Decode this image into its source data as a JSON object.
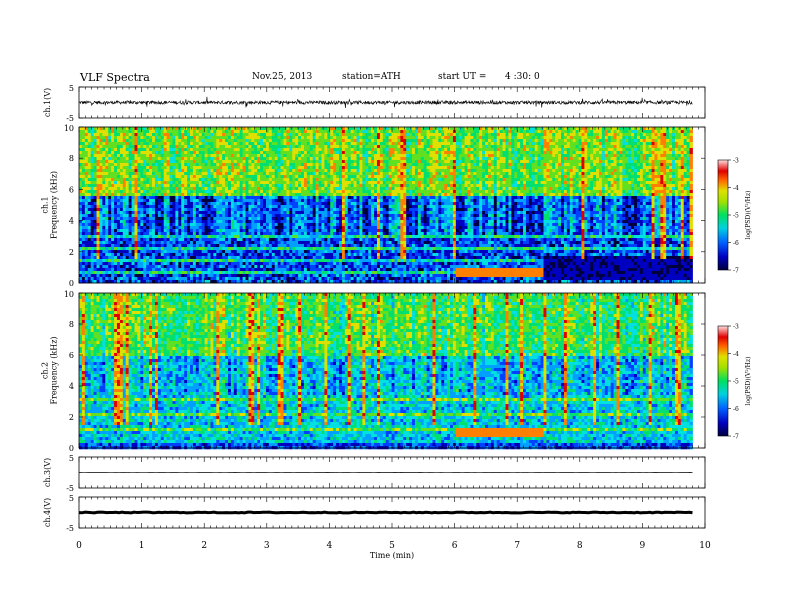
{
  "header": {
    "title": "VLF  Spectra",
    "date": "Nov.25, 2013",
    "station": "station=ATH",
    "start_label": "start  UT  =",
    "start_time": "4 :30: 0"
  },
  "colors": {
    "spectrogram": [
      "#000040",
      "#0000c0",
      "#0040ff",
      "#00a0ff",
      "#00e0e0",
      "#00e070",
      "#60e020",
      "#e0e000",
      "#ff8000",
      "#e00000",
      "#ffffff"
    ],
    "waveform": "#000000"
  },
  "chart_data": [
    {
      "type": "line",
      "panel": "ch1-waveform",
      "ylabel": "ch.1(V)",
      "ylim": [
        -5,
        5
      ],
      "yticks": [
        "5",
        "-5"
      ],
      "description_values": {
        "baseline": 0,
        "typical_amplitude": 1.0
      }
    },
    {
      "type": "heatmap",
      "panel": "ch1-spectrogram",
      "ylabel": [
        "ch.1",
        "Frequency  (kHz)"
      ],
      "ylim": [
        0,
        10
      ],
      "yticks": [
        "0",
        "2",
        "4",
        "6",
        "8",
        "10"
      ],
      "colorbar": {
        "label": "log(PSD)(V²/Hz)",
        "range": [
          -7,
          -3
        ],
        "ticks": [
          "-3",
          "-4",
          "-5",
          "-6",
          "-7"
        ]
      },
      "events": [
        {
          "t": 6.0,
          "note": "band change near 1 kHz"
        },
        {
          "t": 7.4,
          "note": "band change"
        }
      ]
    },
    {
      "type": "heatmap",
      "panel": "ch2-spectrogram",
      "ylabel": [
        "ch.2",
        "Frequency  (kHz)"
      ],
      "ylim": [
        0,
        10
      ],
      "yticks": [
        "0",
        "2",
        "4",
        "6",
        "8",
        "10"
      ],
      "colorbar": {
        "label": "log(PSD)(V²/Hz)",
        "range": [
          -7,
          -3
        ],
        "ticks": [
          "-3",
          "-4",
          "-5",
          "-6",
          "-7"
        ]
      }
    },
    {
      "type": "line",
      "panel": "ch3-waveform",
      "ylabel": "ch.3(V)",
      "ylim": [
        -5,
        5
      ],
      "yticks": [
        "5",
        "-5"
      ],
      "description_values": {
        "baseline": 0
      }
    },
    {
      "type": "line",
      "panel": "ch4-waveform",
      "ylabel": "ch.4(V)",
      "ylim": [
        -5,
        5
      ],
      "yticks": [
        "5",
        "-5"
      ],
      "description_values": {
        "baseline": 0,
        "typical_amplitude": 0.3
      }
    }
  ],
  "xaxis": {
    "label": "Time  (min)",
    "xlim": [
      0,
      10
    ],
    "ticks": [
      "0",
      "1",
      "2",
      "3",
      "4",
      "5",
      "6",
      "7",
      "8",
      "9",
      "10"
    ],
    "data_end": 9.8
  }
}
